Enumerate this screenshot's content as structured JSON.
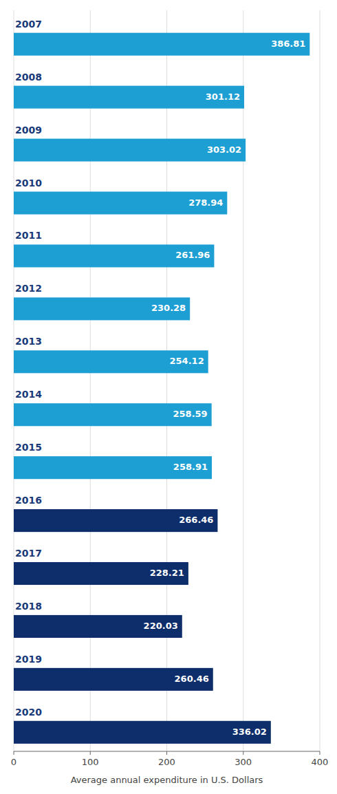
{
  "chart_data": {
    "type": "bar",
    "orientation": "horizontal",
    "categories": [
      "2007",
      "2008",
      "2009",
      "2010",
      "2011",
      "2012",
      "2013",
      "2014",
      "2015",
      "2016",
      "2017",
      "2018",
      "2019",
      "2020"
    ],
    "values": [
      386.81,
      301.12,
      303.02,
      278.94,
      261.96,
      230.28,
      254.12,
      258.59,
      258.91,
      266.46,
      228.21,
      220.03,
      260.46,
      336.02
    ],
    "colors": [
      "#1e9fd4",
      "#1e9fd4",
      "#1e9fd4",
      "#1e9fd4",
      "#1e9fd4",
      "#1e9fd4",
      "#1e9fd4",
      "#1e9fd4",
      "#1e9fd4",
      "#0d2d6b",
      "#0d2d6b",
      "#0d2d6b",
      "#0d2d6b",
      "#0d2d6b"
    ],
    "xlabel": "Average annual expenditure in U.S. Dollars",
    "xlim": [
      0,
      400
    ],
    "xticks": [
      0,
      100,
      200,
      300,
      400
    ],
    "grid": true,
    "data_labels": true
  }
}
